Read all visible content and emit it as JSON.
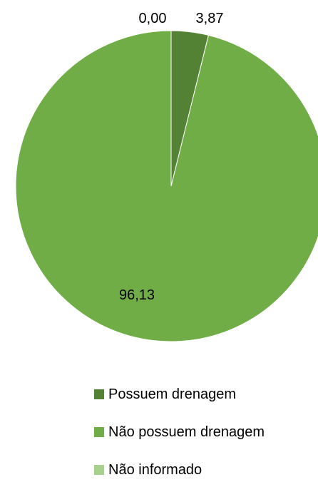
{
  "chart_data": {
    "type": "pie",
    "title": "",
    "categories": [
      "Possuem drenagem",
      "Não possuem drenagem",
      "Não informado"
    ],
    "values": [
      3.87,
      96.13,
      0.0
    ],
    "data_labels": [
      "3,87",
      "96,13",
      "0,00"
    ],
    "colors": [
      "#548235",
      "#70ad47",
      "#a9d18e"
    ],
    "legend_position": "bottom"
  }
}
